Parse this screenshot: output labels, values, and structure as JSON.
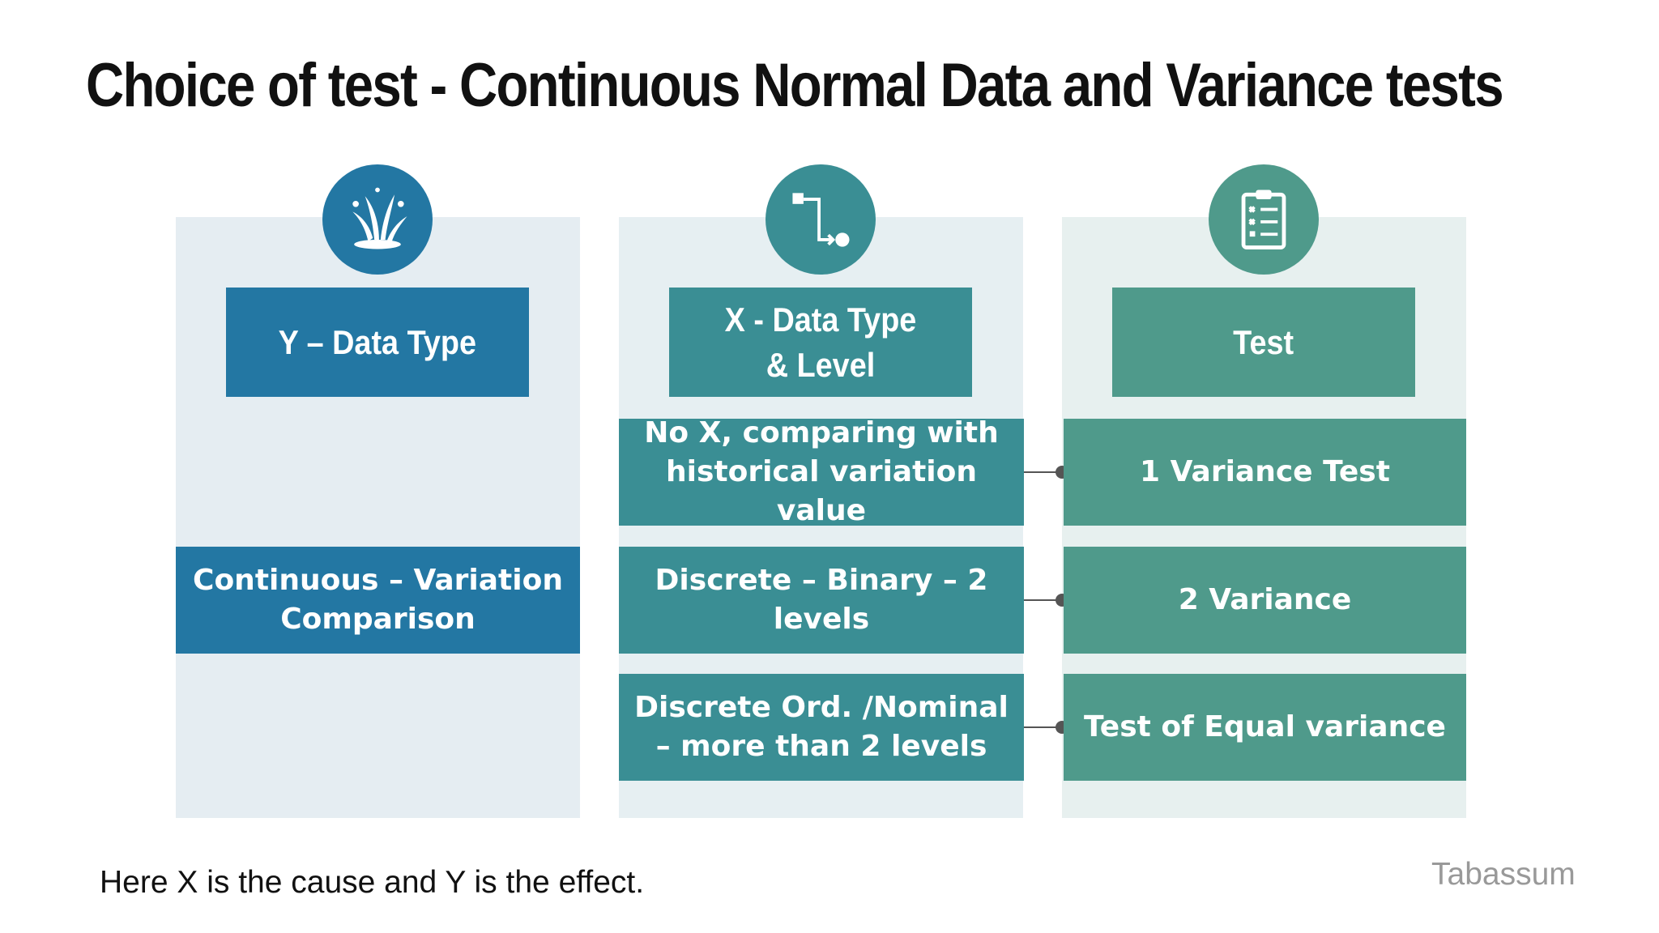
{
  "title": "Choice of test - Continuous Normal Data and Variance tests",
  "columns": {
    "y": {
      "header": "Y – Data Type",
      "icon": "splash-icon",
      "color": "#2377a3"
    },
    "x": {
      "header": "X - Data Type & Level",
      "icon": "process-flow-icon",
      "color": "#3a8e94"
    },
    "test": {
      "header": "Test",
      "icon": "clipboard-checklist-icon",
      "color": "#4f9a8b"
    }
  },
  "y_cell": "Continuous – Variation Comparison",
  "rows": [
    {
      "x": "No X, comparing with historical variation value",
      "test": "1 Variance Test"
    },
    {
      "x": "Discrete – Binary – 2 levels",
      "test": "2 Variance"
    },
    {
      "x": "Discrete Ord. /Nominal – more than 2 levels",
      "test": "Test of Equal variance"
    }
  ],
  "footer": "Here X is the cause and Y is the effect.",
  "credit": "Tabassum"
}
